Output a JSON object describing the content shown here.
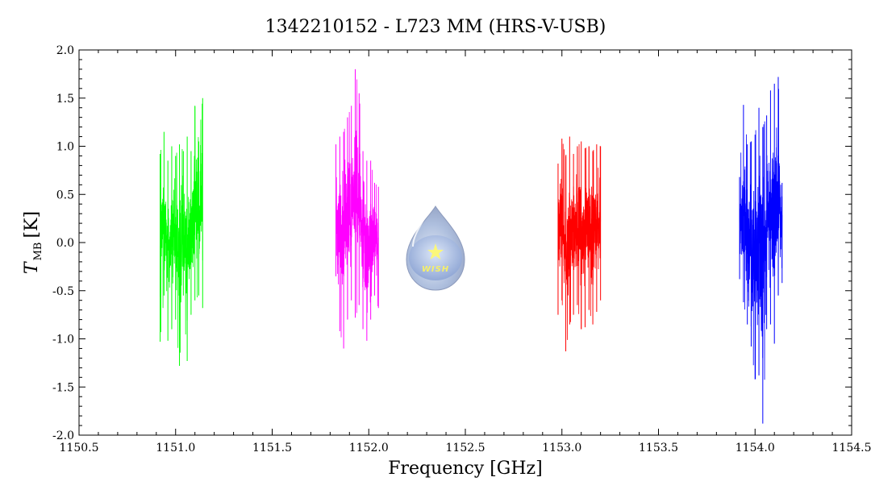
{
  "chart_data": {
    "type": "line",
    "title": "1342210152 - L723 MM (HRS-V-USB)",
    "xlabel": "Frequency [GHz]",
    "ylabel_main": "T",
    "ylabel_sub": "MB",
    "ylabel_unit": "[K]",
    "xlim": [
      1150.5,
      1154.5
    ],
    "ylim": [
      -2.0,
      2.0
    ],
    "xticks": [
      1150.5,
      1151.0,
      1151.5,
      1152.0,
      1152.5,
      1153.0,
      1153.5,
      1154.0,
      1154.5
    ],
    "xtick_labels": [
      "1150.5",
      "1151.0",
      "1151.5",
      "1152.0",
      "1152.5",
      "1153.0",
      "1153.5",
      "1154.0",
      "1154.5"
    ],
    "yticks": [
      -2.0,
      -1.5,
      -1.0,
      -0.5,
      0.0,
      0.5,
      1.0,
      1.5,
      2.0
    ],
    "ytick_labels": [
      "-2.0",
      "-1.5",
      "-1.0",
      "-0.5",
      "0.0",
      "0.5",
      "1.0",
      "1.5",
      "2.0"
    ],
    "grid": false,
    "series": [
      {
        "color": "#00ff00",
        "x": [
          1150.92,
          1150.94,
          1150.96,
          1150.98,
          1151.0,
          1151.02,
          1151.04,
          1151.06,
          1151.08,
          1151.1,
          1151.12,
          1151.14
        ],
        "y_max": [
          0.92,
          1.15,
          0.85,
          1.0,
          0.9,
          1.02,
          0.95,
          1.1,
          0.95,
          1.42,
          1.05,
          1.5
        ],
        "y_min": [
          -1.03,
          -0.55,
          -1.02,
          -0.9,
          -0.8,
          -1.28,
          -0.55,
          -1.23,
          -0.75,
          -0.6,
          -0.55,
          -0.68
        ]
      },
      {
        "color": "#ff00ff",
        "x": [
          1151.83,
          1151.85,
          1151.87,
          1151.89,
          1151.91,
          1151.93,
          1151.95,
          1151.97,
          1151.99,
          1152.01,
          1152.03,
          1152.05
        ],
        "y_max": [
          1.02,
          1.1,
          1.15,
          1.3,
          1.42,
          1.8,
          1.55,
          0.95,
          0.85,
          0.85,
          0.62,
          0.58
        ],
        "y_min": [
          -0.35,
          -0.92,
          -1.1,
          -0.8,
          -0.6,
          -0.78,
          -0.65,
          -0.9,
          -1.02,
          -0.8,
          -0.55,
          -0.68
        ]
      },
      {
        "color": "#ff0000",
        "x": [
          1152.98,
          1153.0,
          1153.02,
          1153.04,
          1153.06,
          1153.08,
          1153.1,
          1153.12,
          1153.14,
          1153.16,
          1153.18,
          1153.2
        ],
        "y_max": [
          0.82,
          1.08,
          0.9,
          1.1,
          0.92,
          1.0,
          1.05,
          0.98,
          1.0,
          0.95,
          1.02,
          1.0
        ],
        "y_min": [
          -0.75,
          -0.6,
          -1.13,
          -0.85,
          -0.75,
          -0.65,
          -0.9,
          -0.88,
          -0.7,
          -0.85,
          -0.72,
          -0.6
        ]
      },
      {
        "color": "#0000ff",
        "x": [
          1153.92,
          1153.94,
          1153.96,
          1153.98,
          1154.0,
          1154.02,
          1154.04,
          1154.06,
          1154.08,
          1154.1,
          1154.12,
          1154.14
        ],
        "y_max": [
          0.68,
          1.43,
          1.02,
          1.05,
          1.12,
          1.4,
          1.2,
          1.32,
          1.58,
          1.65,
          1.72,
          0.62
        ],
        "y_min": [
          -0.38,
          -0.62,
          -0.85,
          -1.08,
          -1.42,
          -1.38,
          -1.88,
          -0.9,
          -0.85,
          -1.05,
          -0.55,
          -0.42
        ]
      }
    ]
  },
  "logo": {
    "text": "WISH"
  }
}
